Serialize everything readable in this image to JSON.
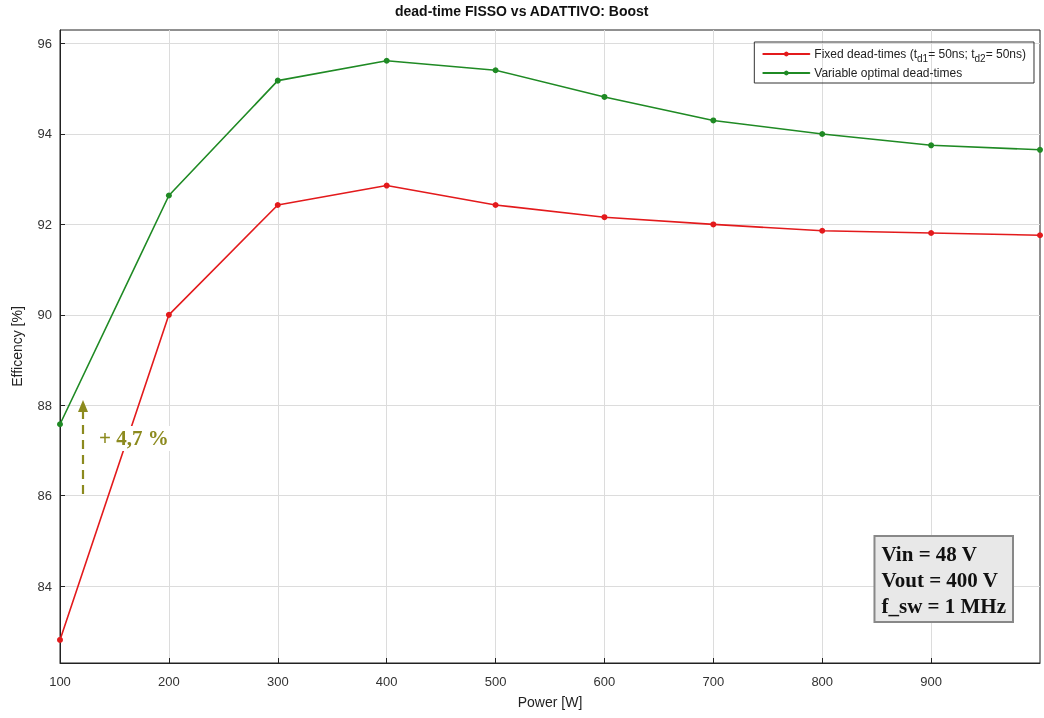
{
  "chart_data": {
    "type": "line",
    "title": "dead-time FISSO vs ADATTIVO: Boost",
    "xlabel": "Power [W]",
    "ylabel": "Efficency [%]",
    "x": [
      100,
      200,
      300,
      400,
      500,
      600,
      700,
      800,
      900,
      1000
    ],
    "series": [
      {
        "name": "Fixed dead-times (t$_{d1}$= 50ns; t$_{d2}$= 50ns)",
        "color": "#e31a1c",
        "values": [
          82.81,
          90.0,
          92.43,
          92.86,
          92.43,
          92.16,
          92.0,
          91.86,
          91.81,
          91.76
        ]
      },
      {
        "name": "Variable optimal dead-times",
        "color": "#1f8a24",
        "values": [
          87.58,
          92.64,
          95.18,
          95.62,
          95.41,
          94.82,
          94.3,
          94.0,
          93.75,
          93.65
        ]
      }
    ],
    "xlim": [
      100,
      1000
    ],
    "xticks": [
      100,
      200,
      300,
      400,
      500,
      600,
      700,
      800,
      900
    ],
    "ylim": [
      82.3,
      96.3
    ],
    "yticks": [
      84,
      86,
      88,
      90,
      92,
      94,
      96
    ],
    "grid": true,
    "legend": "top right",
    "marker": "circle",
    "line_style": "solid",
    "annotations": [
      "+ 4,7 %",
      "Vin = 48 V",
      "Vout = 400 V",
      "f_sw = 1 MHz"
    ]
  }
}
